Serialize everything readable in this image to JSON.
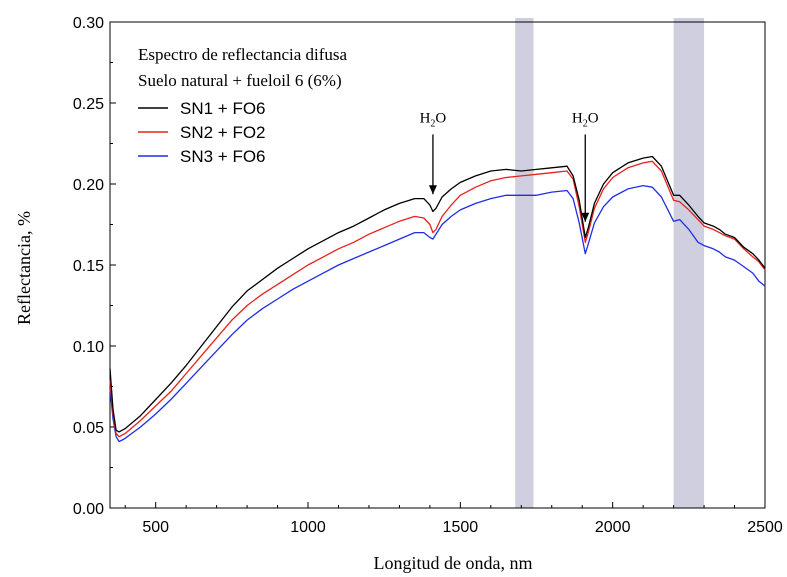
{
  "chart_data": {
    "type": "line",
    "title": "Espectro de reflectancia difusa",
    "subtitle": "Suelo natural + fueloil 6 (6%)",
    "xlabel": "Longitud de onda, nm",
    "ylabel": "Reflectancia, %",
    "xlim": [
      350,
      2500
    ],
    "ylim": [
      0.0,
      0.3
    ],
    "xticks": [
      500,
      1000,
      1500,
      2000,
      2500
    ],
    "yticks": [
      "0.00",
      "0.05",
      "0.10",
      "0.15",
      "0.20",
      "0.25",
      "0.30"
    ],
    "grid": false,
    "legend_position": "top-left",
    "bands": [
      {
        "from": 1680,
        "to": 1740
      },
      {
        "from": 2200,
        "to": 2300
      }
    ],
    "band_color": "#cfcfe0",
    "annotations": [
      {
        "label": "H",
        "sub": "2",
        "after": "O",
        "x": 1410,
        "y": 0.19,
        "y_text": 0.238
      },
      {
        "label": "H",
        "sub": "2",
        "after": "O",
        "x": 1910,
        "y": 0.173,
        "y_text": 0.238
      }
    ],
    "x": [
      350,
      360,
      370,
      380,
      390,
      400,
      450,
      500,
      550,
      600,
      650,
      700,
      750,
      800,
      850,
      900,
      950,
      1000,
      1050,
      1100,
      1150,
      1200,
      1250,
      1300,
      1350,
      1380,
      1400,
      1410,
      1420,
      1440,
      1470,
      1500,
      1550,
      1600,
      1650,
      1700,
      1750,
      1800,
      1850,
      1870,
      1890,
      1910,
      1920,
      1940,
      1970,
      2000,
      2050,
      2100,
      2130,
      2160,
      2200,
      2220,
      2250,
      2280,
      2300,
      2330,
      2350,
      2370,
      2400,
      2430,
      2460,
      2480,
      2500
    ],
    "series": [
      {
        "name": "SN1 + FO6",
        "color": "#000000",
        "values": [
          0.086,
          0.061,
          0.048,
          0.047,
          0.048,
          0.049,
          0.057,
          0.067,
          0.077,
          0.088,
          0.1,
          0.112,
          0.124,
          0.134,
          0.141,
          0.148,
          0.154,
          0.16,
          0.165,
          0.17,
          0.174,
          0.179,
          0.184,
          0.188,
          0.191,
          0.191,
          0.187,
          0.183,
          0.185,
          0.192,
          0.197,
          0.201,
          0.205,
          0.208,
          0.209,
          0.208,
          0.209,
          0.21,
          0.211,
          0.205,
          0.19,
          0.167,
          0.173,
          0.188,
          0.2,
          0.207,
          0.213,
          0.216,
          0.217,
          0.211,
          0.193,
          0.193,
          0.187,
          0.18,
          0.176,
          0.174,
          0.172,
          0.169,
          0.167,
          0.161,
          0.157,
          0.153,
          0.148
        ]
      },
      {
        "name": "SN2 + FO2",
        "color": "#e8211c",
        "values": [
          0.079,
          0.058,
          0.046,
          0.044,
          0.045,
          0.046,
          0.054,
          0.063,
          0.072,
          0.083,
          0.094,
          0.105,
          0.116,
          0.125,
          0.132,
          0.138,
          0.144,
          0.15,
          0.155,
          0.16,
          0.164,
          0.169,
          0.173,
          0.177,
          0.18,
          0.179,
          0.175,
          0.17,
          0.172,
          0.18,
          0.187,
          0.193,
          0.198,
          0.202,
          0.204,
          0.205,
          0.206,
          0.207,
          0.208,
          0.203,
          0.186,
          0.164,
          0.17,
          0.185,
          0.197,
          0.204,
          0.21,
          0.213,
          0.214,
          0.208,
          0.19,
          0.189,
          0.184,
          0.178,
          0.174,
          0.172,
          0.17,
          0.168,
          0.166,
          0.16,
          0.155,
          0.152,
          0.147
        ]
      },
      {
        "name": "SN3 + FO6",
        "color": "#1f2de8",
        "values": [
          0.074,
          0.055,
          0.044,
          0.041,
          0.042,
          0.043,
          0.05,
          0.058,
          0.067,
          0.077,
          0.087,
          0.097,
          0.107,
          0.116,
          0.123,
          0.129,
          0.135,
          0.14,
          0.145,
          0.15,
          0.154,
          0.158,
          0.162,
          0.166,
          0.17,
          0.17,
          0.167,
          0.166,
          0.169,
          0.175,
          0.18,
          0.184,
          0.188,
          0.191,
          0.193,
          0.193,
          0.193,
          0.195,
          0.196,
          0.191,
          0.176,
          0.157,
          0.163,
          0.176,
          0.186,
          0.192,
          0.197,
          0.199,
          0.198,
          0.192,
          0.177,
          0.178,
          0.172,
          0.164,
          0.162,
          0.16,
          0.158,
          0.155,
          0.153,
          0.149,
          0.145,
          0.14,
          0.137
        ]
      }
    ]
  }
}
